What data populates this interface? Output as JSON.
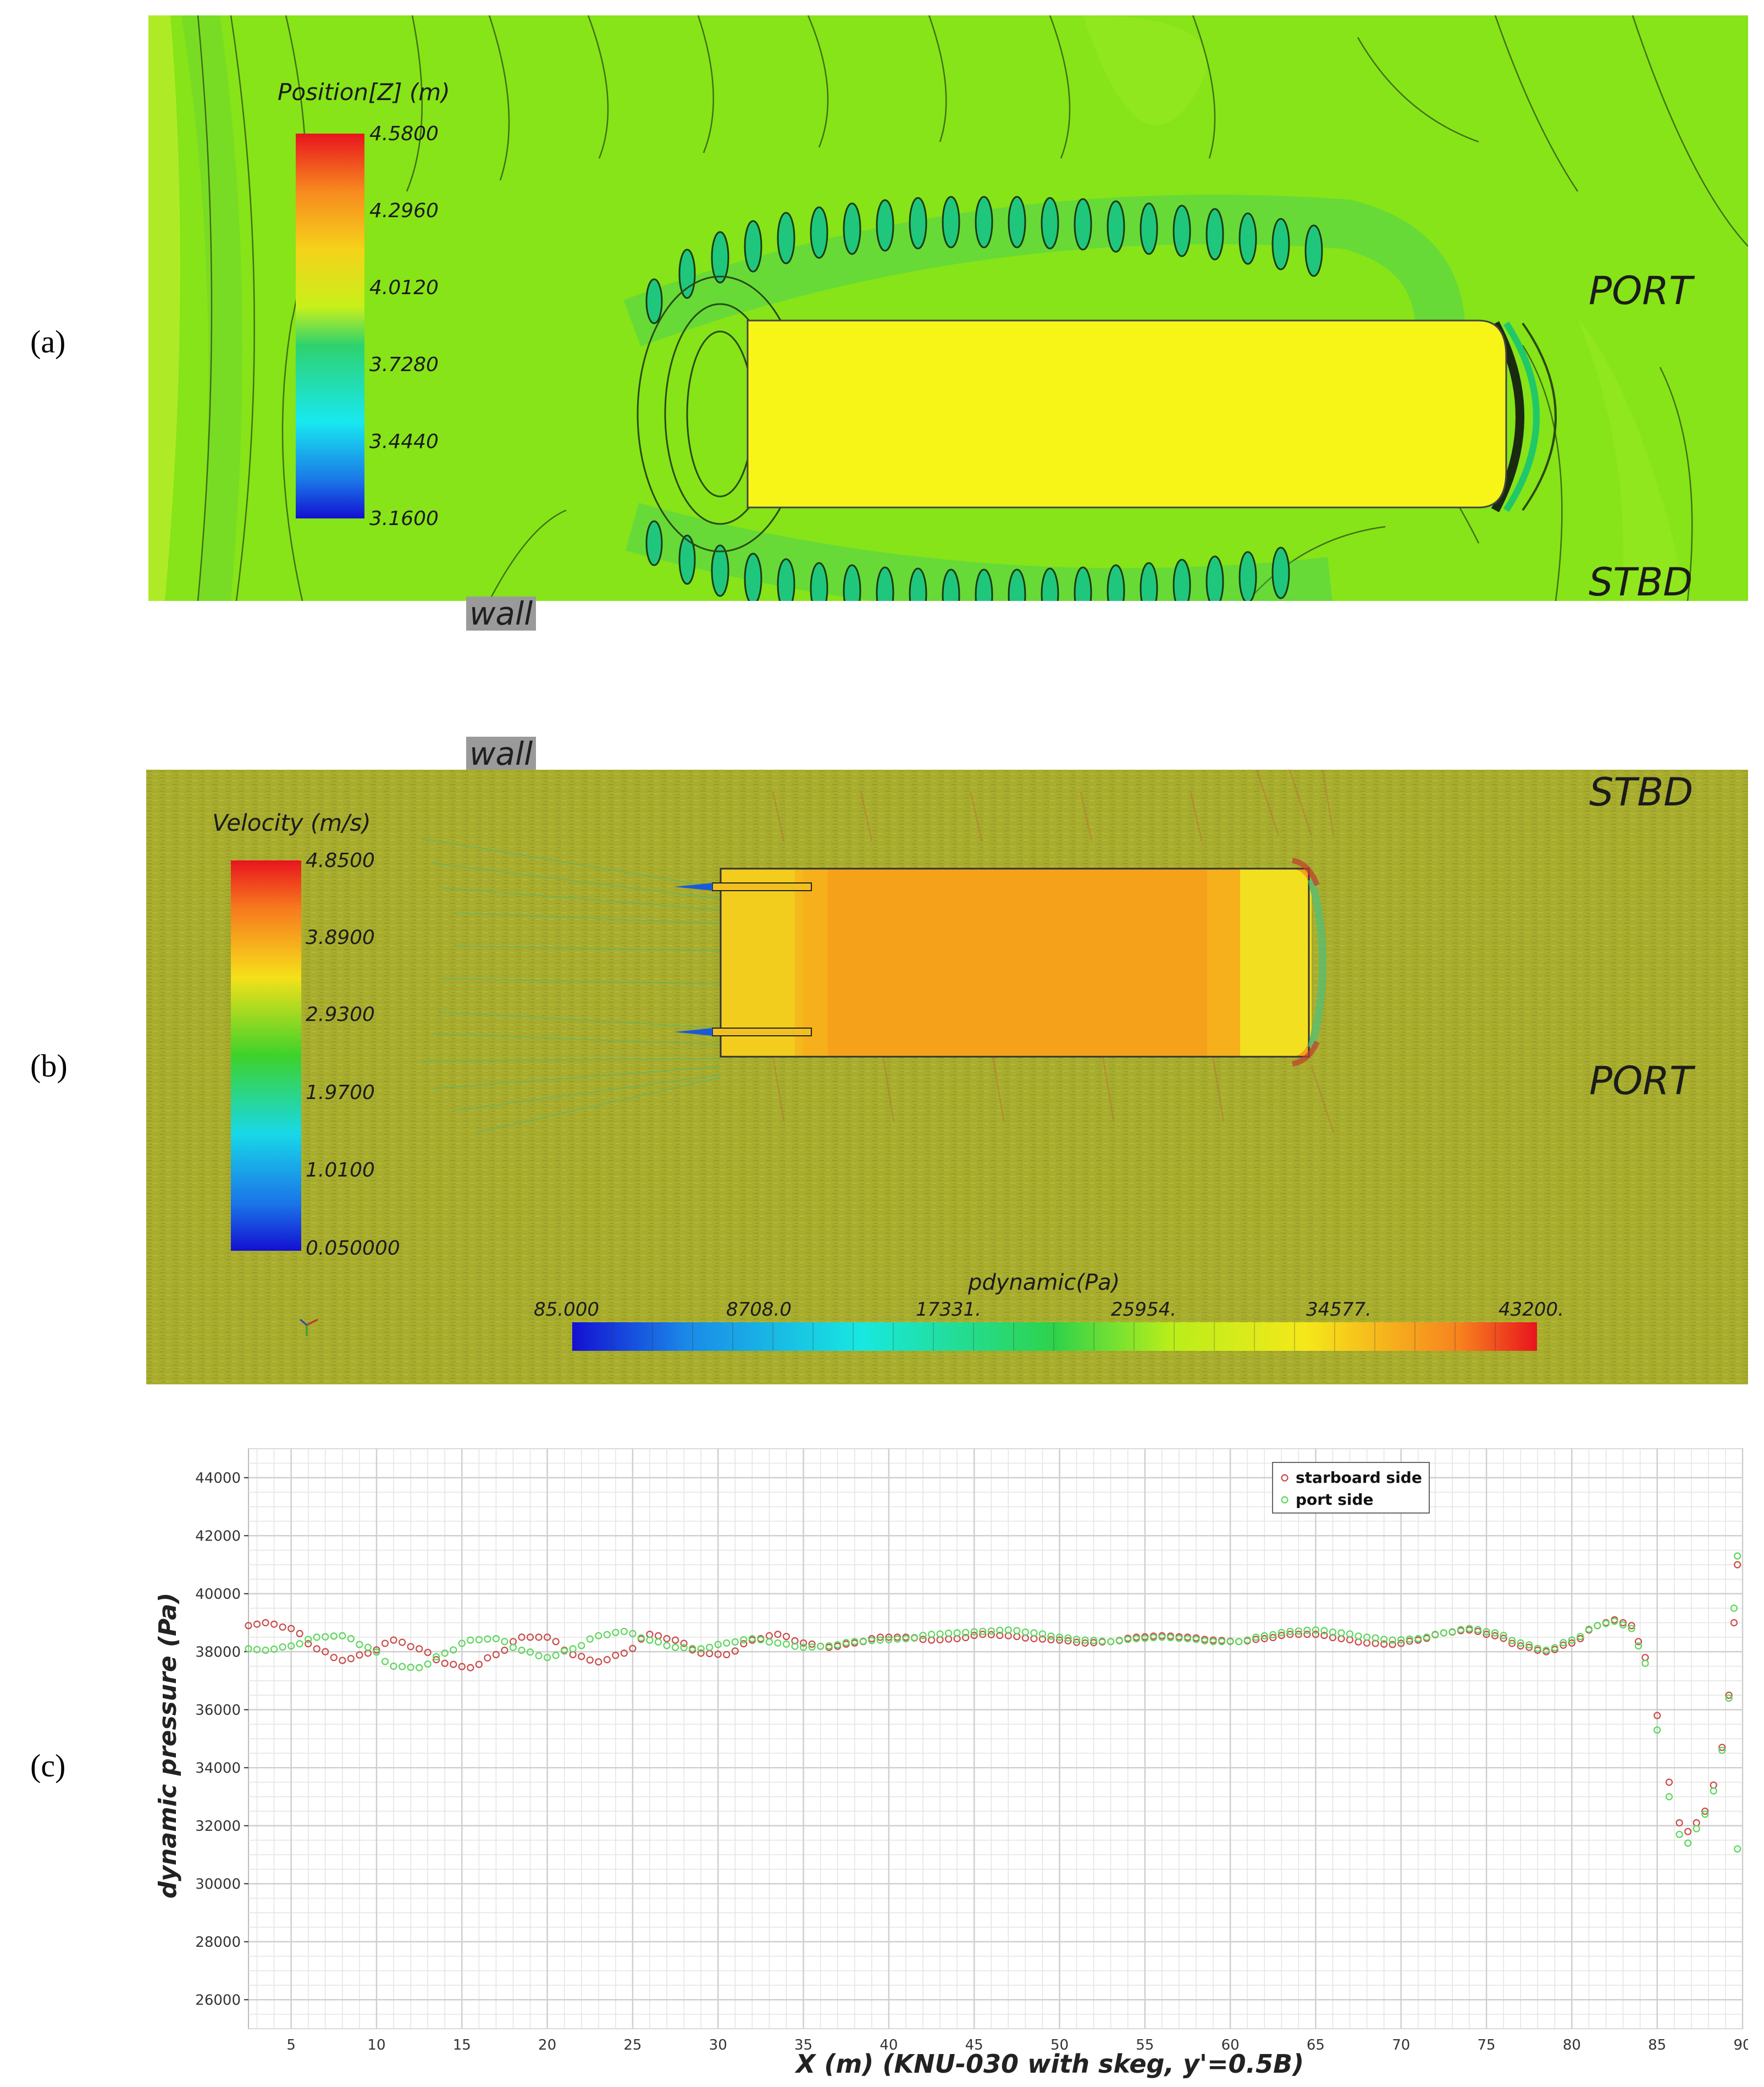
{
  "panels": {
    "a": {
      "label": "(a)",
      "colorbar_title": "Position[Z] (m)",
      "colorbar_ticks": [
        "4.5800",
        "4.2960",
        "4.0120",
        "3.7280",
        "3.4440",
        "3.1600"
      ],
      "side_top": "PORT",
      "side_bottom": "STBD",
      "wall_label": "wall"
    },
    "b": {
      "label": "(b)",
      "wall_label": "wall",
      "colorbar_title": "Velocity (m/s)",
      "colorbar_ticks": [
        "4.8500",
        "3.8900",
        "2.9300",
        "1.9700",
        "1.0100",
        "0.050000"
      ],
      "side_top": "STBD",
      "side_bottom": "PORT",
      "pressure_bar_title": "pdynamic(Pa)",
      "pressure_bar_ticks": [
        "85.000",
        "8708.0",
        "17331.",
        "25954.",
        "34577.",
        "43200."
      ]
    },
    "c": {
      "label": "(c)"
    }
  },
  "colors": {
    "starboard": "#c94a4a",
    "port": "#5cd65c",
    "water_a": "#86e418",
    "water_b": "#a8ad2e",
    "hull_a": "#f5f516",
    "hull_b": "#f5a21a"
  },
  "chart_data": {
    "type": "scatter",
    "xlabel": "X (m)   (KNU-030 with skeg,  y'=0.5B)",
    "ylabel": "dynamic pressure (Pa)",
    "xlim": [
      2.5,
      90
    ],
    "ylim": [
      25000,
      45000
    ],
    "x_ticks": [
      5,
      10,
      15,
      20,
      25,
      30,
      35,
      40,
      45,
      50,
      55,
      60,
      65,
      70,
      75,
      80,
      85,
      90
    ],
    "y_ticks": [
      26000,
      28000,
      30000,
      32000,
      34000,
      36000,
      38000,
      40000,
      42000,
      44000
    ],
    "grid": true,
    "legend_position": "top-right",
    "series": [
      {
        "name": "starboard side",
        "marker": "open-circle",
        "points": [
          [
            2.5,
            38900
          ],
          [
            3.5,
            39000
          ],
          [
            5.0,
            38800
          ],
          [
            6.5,
            38100
          ],
          [
            8.0,
            37700
          ],
          [
            9.5,
            37950
          ],
          [
            11.0,
            38400
          ],
          [
            12.5,
            38100
          ],
          [
            14.0,
            37600
          ],
          [
            15.5,
            37450
          ],
          [
            17.0,
            37900
          ],
          [
            18.5,
            38500
          ],
          [
            20.0,
            38500
          ],
          [
            21.5,
            37900
          ],
          [
            23.0,
            37650
          ],
          [
            24.5,
            37950
          ],
          [
            26.0,
            38600
          ],
          [
            27.5,
            38400
          ],
          [
            29.0,
            37950
          ],
          [
            30.5,
            37900
          ],
          [
            32.0,
            38400
          ],
          [
            33.5,
            38600
          ],
          [
            35.0,
            38300
          ],
          [
            36.5,
            38150
          ],
          [
            38.0,
            38300
          ],
          [
            39.5,
            38500
          ],
          [
            41.0,
            38500
          ],
          [
            42.5,
            38400
          ],
          [
            44.0,
            38450
          ],
          [
            45.5,
            38600
          ],
          [
            47.0,
            38550
          ],
          [
            48.5,
            38450
          ],
          [
            50.0,
            38400
          ],
          [
            51.5,
            38300
          ],
          [
            53.0,
            38350
          ],
          [
            54.5,
            38500
          ],
          [
            56.0,
            38550
          ],
          [
            57.5,
            38500
          ],
          [
            59.0,
            38400
          ],
          [
            60.5,
            38350
          ],
          [
            62.0,
            38450
          ],
          [
            63.5,
            38600
          ],
          [
            65.0,
            38600
          ],
          [
            66.5,
            38450
          ],
          [
            68.0,
            38300
          ],
          [
            69.5,
            38250
          ],
          [
            71.0,
            38400
          ],
          [
            72.5,
            38650
          ],
          [
            74.0,
            38750
          ],
          [
            75.5,
            38550
          ],
          [
            77.0,
            38200
          ],
          [
            78.5,
            38000
          ],
          [
            80.0,
            38300
          ],
          [
            81.5,
            38900
          ],
          [
            82.5,
            39100
          ],
          [
            83.5,
            38900
          ],
          [
            84.3,
            37800
          ],
          [
            85.0,
            35800
          ],
          [
            85.7,
            33500
          ],
          [
            86.3,
            32100
          ],
          [
            86.8,
            31800
          ],
          [
            87.3,
            32100
          ],
          [
            87.8,
            32500
          ],
          [
            88.3,
            33400
          ],
          [
            88.8,
            34700
          ],
          [
            89.2,
            36500
          ],
          [
            89.5,
            39000
          ],
          [
            89.7,
            41000
          ]
        ]
      },
      {
        "name": "port side",
        "marker": "open-circle",
        "points": [
          [
            2.5,
            38100
          ],
          [
            3.5,
            38050
          ],
          [
            5.0,
            38200
          ],
          [
            6.5,
            38500
          ],
          [
            8.0,
            38550
          ],
          [
            9.5,
            38150
          ],
          [
            11.0,
            37500
          ],
          [
            12.5,
            37450
          ],
          [
            14.0,
            37950
          ],
          [
            15.5,
            38400
          ],
          [
            17.0,
            38450
          ],
          [
            18.5,
            38050
          ],
          [
            20.0,
            37800
          ],
          [
            21.5,
            38100
          ],
          [
            23.0,
            38550
          ],
          [
            24.5,
            38700
          ],
          [
            26.0,
            38400
          ],
          [
            27.5,
            38150
          ],
          [
            29.0,
            38100
          ],
          [
            30.5,
            38300
          ],
          [
            32.0,
            38450
          ],
          [
            33.5,
            38300
          ],
          [
            35.0,
            38150
          ],
          [
            36.5,
            38200
          ],
          [
            38.0,
            38350
          ],
          [
            39.5,
            38400
          ],
          [
            41.0,
            38450
          ],
          [
            42.5,
            38600
          ],
          [
            44.0,
            38650
          ],
          [
            45.5,
            38700
          ],
          [
            47.0,
            38750
          ],
          [
            48.5,
            38650
          ],
          [
            50.0,
            38500
          ],
          [
            51.5,
            38400
          ],
          [
            53.0,
            38350
          ],
          [
            54.5,
            38450
          ],
          [
            56.0,
            38500
          ],
          [
            57.5,
            38450
          ],
          [
            59.0,
            38350
          ],
          [
            60.5,
            38350
          ],
          [
            62.0,
            38550
          ],
          [
            63.5,
            38700
          ],
          [
            65.0,
            38750
          ],
          [
            66.5,
            38650
          ],
          [
            68.0,
            38500
          ],
          [
            69.5,
            38400
          ],
          [
            71.0,
            38450
          ],
          [
            72.5,
            38650
          ],
          [
            74.0,
            38800
          ],
          [
            75.5,
            38650
          ],
          [
            77.0,
            38300
          ],
          [
            78.5,
            38050
          ],
          [
            80.0,
            38400
          ],
          [
            81.5,
            38900
          ],
          [
            82.5,
            39050
          ],
          [
            83.5,
            38800
          ],
          [
            84.3,
            37600
          ],
          [
            85.0,
            35300
          ],
          [
            85.7,
            33000
          ],
          [
            86.3,
            31700
          ],
          [
            86.8,
            31400
          ],
          [
            87.3,
            31900
          ],
          [
            87.8,
            32400
          ],
          [
            88.3,
            33200
          ],
          [
            88.8,
            34600
          ],
          [
            89.2,
            36400
          ],
          [
            89.5,
            39500
          ],
          [
            89.7,
            41300
          ],
          [
            89.7,
            31200
          ]
        ]
      }
    ]
  }
}
